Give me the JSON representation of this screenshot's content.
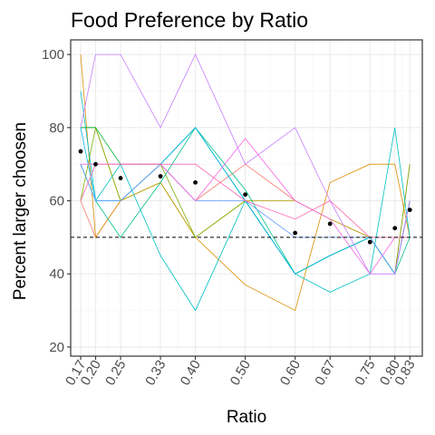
{
  "chart_data": {
    "type": "line",
    "title": "Food Preference by Ratio",
    "xlabel": "Ratio",
    "ylabel": "Percent larger choosen",
    "x": [
      0.17,
      0.2,
      0.25,
      0.33,
      0.4,
      0.5,
      0.6,
      0.67,
      0.75,
      0.8,
      0.83
    ],
    "x_tick_labels": [
      "0.17",
      "0.20",
      "0.25",
      "0.33",
      "0.40",
      "0.50",
      "0.60",
      "0.67",
      "0.75",
      "0.80",
      "0.83"
    ],
    "xlim": [
      0.15,
      0.855
    ],
    "ylim": [
      17.5,
      104
    ],
    "y_ticks": [
      20,
      40,
      60,
      80,
      100
    ],
    "y_tick_labels": [
      "20",
      "40",
      "60",
      "80",
      "100"
    ],
    "grid": true,
    "legend": "none",
    "reference_line": {
      "y": 50,
      "style": "dashed",
      "color": "#000000"
    },
    "series": [
      {
        "color": "#F8766D",
        "values": [
          60,
          50,
          60,
          70,
          60,
          70,
          60,
          55,
          50,
          40,
          70
        ]
      },
      {
        "color": "#DE8C00",
        "values": [
          100,
          50,
          60,
          65,
          50,
          37,
          30,
          65,
          70,
          70,
          50
        ]
      },
      {
        "color": "#B79F00",
        "values": [
          80,
          80,
          60,
          65,
          50,
          60,
          60,
          55,
          50,
          40,
          60
        ]
      },
      {
        "color": "#7CAE00",
        "values": [
          60,
          80,
          60,
          70,
          50,
          60,
          40,
          45,
          50,
          40,
          70
        ]
      },
      {
        "color": "#00BA38",
        "values": [
          80,
          80,
          70,
          70,
          80,
          60,
          40,
          45,
          50,
          40,
          60
        ]
      },
      {
        "color": "#00C08B",
        "values": [
          70,
          60,
          50,
          65,
          80,
          63,
          40,
          45,
          50,
          40,
          50
        ]
      },
      {
        "color": "#00BFC4",
        "values": [
          90,
          60,
          70,
          45,
          30,
          60,
          40,
          35,
          40,
          80,
          50
        ]
      },
      {
        "color": "#00B4F0",
        "values": [
          80,
          60,
          60,
          70,
          80,
          60,
          40,
          45,
          50,
          40,
          60
        ]
      },
      {
        "color": "#619CFF",
        "values": [
          70,
          60,
          60,
          70,
          60,
          60,
          50,
          50,
          50,
          40,
          60
        ]
      },
      {
        "color": "#C77CFF",
        "values": [
          80,
          100,
          100,
          80,
          100,
          70,
          80,
          60,
          40,
          40,
          60
        ]
      },
      {
        "color": "#F564E3",
        "values": [
          70,
          70,
          70,
          70,
          60,
          77,
          60,
          55,
          40,
          50,
          50
        ]
      },
      {
        "color": "#FF64B0",
        "values": [
          60,
          70,
          70,
          70,
          70,
          60,
          55,
          60,
          50,
          50,
          50
        ]
      }
    ],
    "means": [
      73.5,
      70,
      66.2,
      66.7,
      65,
      61.7,
      51.2,
      53.7,
      48.7,
      52.5,
      57.5
    ]
  }
}
